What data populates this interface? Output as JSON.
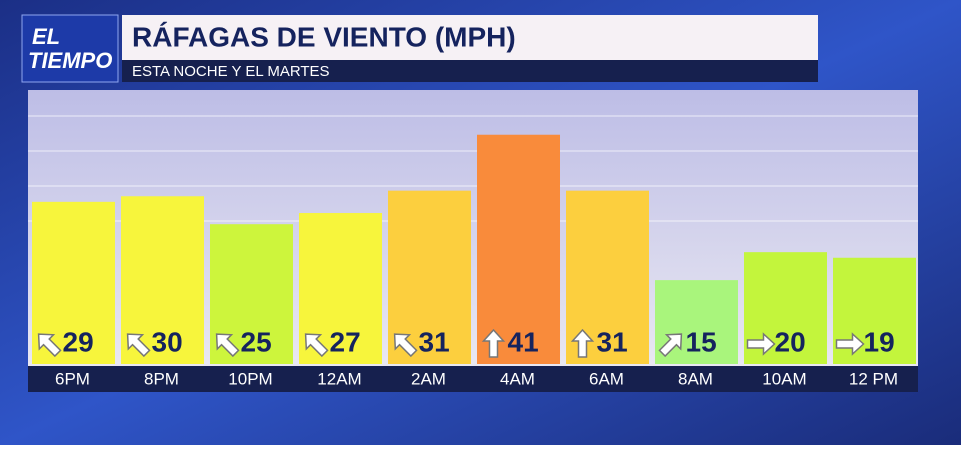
{
  "logo": {
    "line1": "EL",
    "line2": "TIEMPO"
  },
  "chart_data": {
    "type": "bar",
    "title": "RÁFAGAS DE VIENTO (MPH)",
    "subtitle": "ESTA NOCHE Y EL MARTES",
    "categories": [
      "6PM",
      "8PM",
      "10PM",
      "12AM",
      "2AM",
      "4AM",
      "6AM",
      "8AM",
      "10AM",
      "12 PM"
    ],
    "values": [
      29,
      30,
      25,
      27,
      31,
      41,
      31,
      15,
      20,
      19
    ],
    "colors": [
      "#f7f53c",
      "#f7f53c",
      "#cdf53c",
      "#f7f53c",
      "#fccf3e",
      "#f98b3b",
      "#fccf3e",
      "#a9f57c",
      "#c3f53c",
      "#c3f53c"
    ],
    "arrow_points": [
      "NW",
      "NW",
      "NW",
      "NW",
      "NW",
      "N",
      "N",
      "NE",
      "E",
      "E"
    ],
    "ylim": [
      0,
      49
    ]
  }
}
